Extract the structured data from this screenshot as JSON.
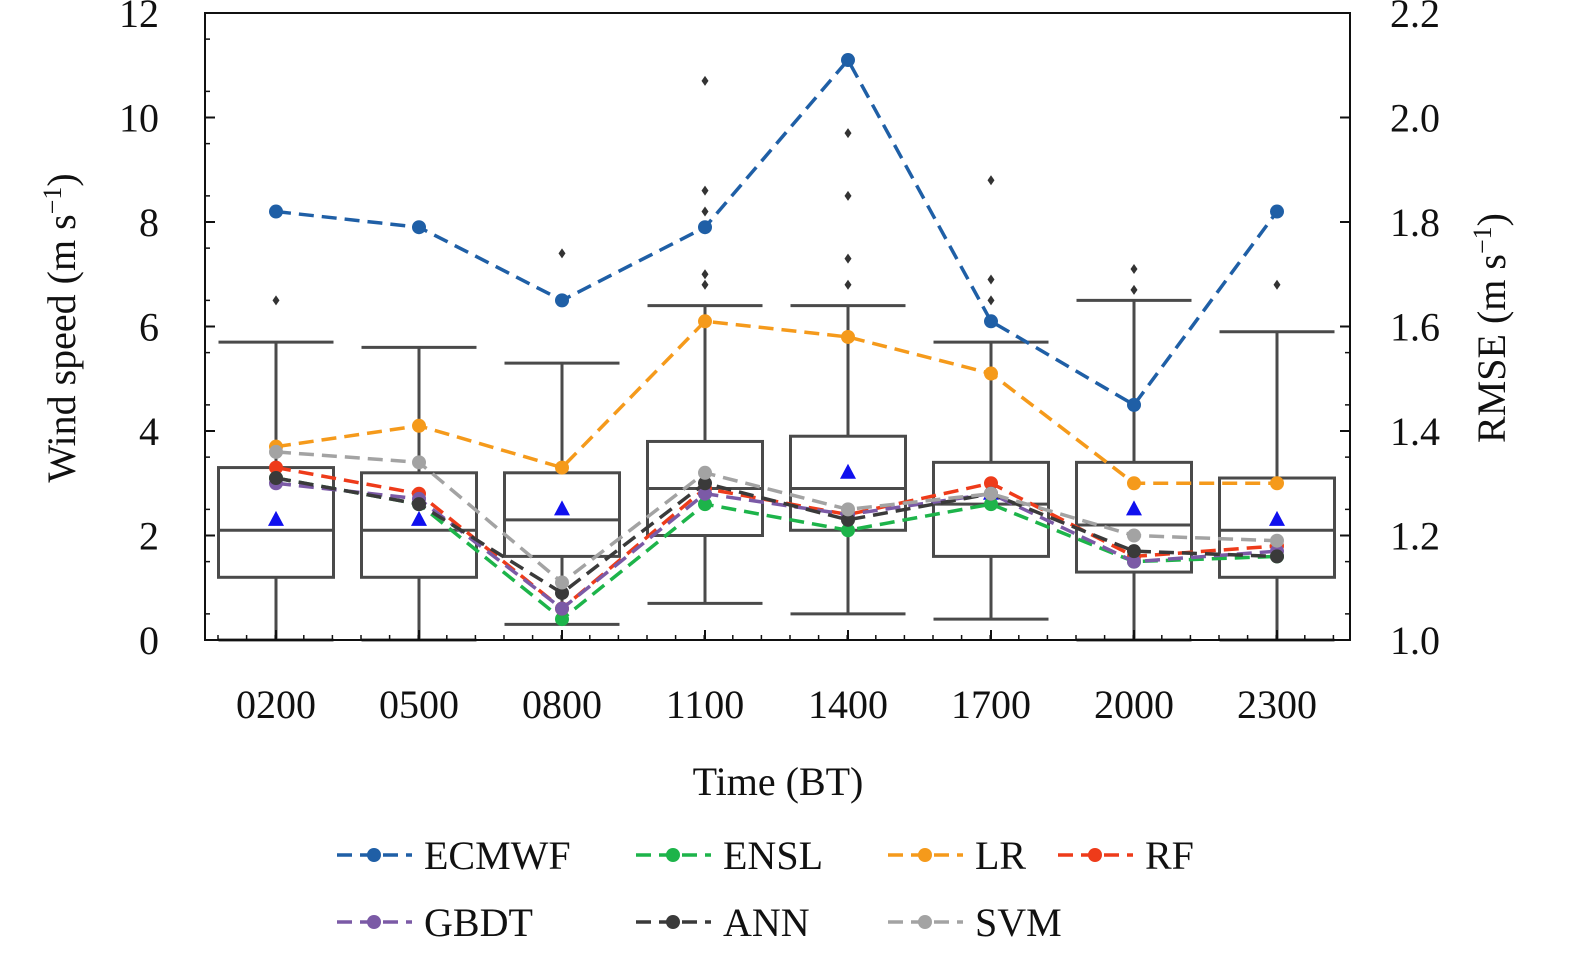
{
  "chart_data": {
    "type": "box+line",
    "categories": [
      "0200",
      "0500",
      "0800",
      "1100",
      "1400",
      "1700",
      "2000",
      "2300"
    ],
    "xlabel": "Time (BT)",
    "ylabel_left": {
      "base": "Wind speed (m s",
      "sup": "−1",
      "end": ")"
    },
    "ylabel_right": {
      "base": "RMSE (m s",
      "sup": "−1",
      "end": ")"
    },
    "ylim_left": [
      0,
      12
    ],
    "yticks_left": [
      0,
      2,
      4,
      6,
      8,
      10,
      12
    ],
    "ylim_right": [
      1.0,
      2.2
    ],
    "yticks_right": [
      "1.0",
      "1.2",
      "1.4",
      "1.6",
      "1.8",
      "2.0",
      "2.2"
    ],
    "grid": false,
    "legend_position": "bottom",
    "boxes": [
      {
        "category": "0200",
        "whisker_low": 0.0,
        "q1": 1.2,
        "median": 2.1,
        "q3": 3.3,
        "whisker_high": 5.7,
        "mean": 2.3,
        "outliers": [
          6.5
        ]
      },
      {
        "category": "0500",
        "whisker_low": 0.0,
        "q1": 1.2,
        "median": 2.1,
        "q3": 3.2,
        "whisker_high": 5.6,
        "mean": 2.3,
        "outliers": []
      },
      {
        "category": "0800",
        "whisker_low": 0.3,
        "q1": 1.6,
        "median": 2.3,
        "q3": 3.2,
        "whisker_high": 5.3,
        "mean": 2.5,
        "outliers": [
          7.4
        ]
      },
      {
        "category": "1100",
        "whisker_low": 0.7,
        "q1": 2.0,
        "median": 2.9,
        "q3": 3.8,
        "whisker_high": 6.4,
        "mean": 2.9,
        "outliers": [
          6.8,
          7.0,
          8.2,
          8.6,
          10.7
        ]
      },
      {
        "category": "1400",
        "whisker_low": 0.5,
        "q1": 2.1,
        "median": 2.9,
        "q3": 3.9,
        "whisker_high": 6.4,
        "mean": 3.2,
        "outliers": [
          6.8,
          7.3,
          8.5,
          9.7
        ]
      },
      {
        "category": "1700",
        "whisker_low": 0.4,
        "q1": 1.6,
        "median": 2.6,
        "q3": 3.4,
        "whisker_high": 5.7,
        "mean": 2.8,
        "outliers": [
          6.5,
          6.9,
          8.8
        ]
      },
      {
        "category": "2000",
        "whisker_low": 0.0,
        "q1": 1.3,
        "median": 2.2,
        "q3": 3.4,
        "whisker_high": 6.5,
        "mean": 2.5,
        "outliers": [
          6.7,
          7.1
        ]
      },
      {
        "category": "2300",
        "whisker_low": 0.0,
        "q1": 1.2,
        "median": 2.1,
        "q3": 3.1,
        "whisker_high": 5.9,
        "mean": 2.3,
        "outliers": [
          6.8
        ]
      }
    ],
    "series": [
      {
        "name": "ECMWF",
        "color": "#1f5fa6",
        "values": [
          1.82,
          1.79,
          1.65,
          1.79,
          2.11,
          1.61,
          1.45,
          1.82
        ]
      },
      {
        "name": "ENSL",
        "color": "#1db44a",
        "values": [
          1.31,
          1.26,
          1.04,
          1.26,
          1.21,
          1.26,
          1.15,
          1.16
        ]
      },
      {
        "name": "LR",
        "color": "#f59a1b",
        "values": [
          1.37,
          1.41,
          1.33,
          1.61,
          1.58,
          1.51,
          1.3,
          1.3
        ]
      },
      {
        "name": "RF",
        "color": "#ee3b1a",
        "values": [
          1.33,
          1.28,
          1.06,
          1.29,
          1.24,
          1.3,
          1.16,
          1.18
        ]
      },
      {
        "name": "GBDT",
        "color": "#7b5aa6",
        "values": [
          1.3,
          1.27,
          1.06,
          1.28,
          1.24,
          1.28,
          1.15,
          1.17
        ]
      },
      {
        "name": "ANN",
        "color": "#3a3a3a",
        "values": [
          1.31,
          1.26,
          1.09,
          1.3,
          1.23,
          1.28,
          1.17,
          1.16
        ]
      },
      {
        "name": "SVM",
        "color": "#a3a3a3",
        "values": [
          1.36,
          1.34,
          1.11,
          1.32,
          1.25,
          1.28,
          1.2,
          1.19
        ]
      }
    ]
  }
}
